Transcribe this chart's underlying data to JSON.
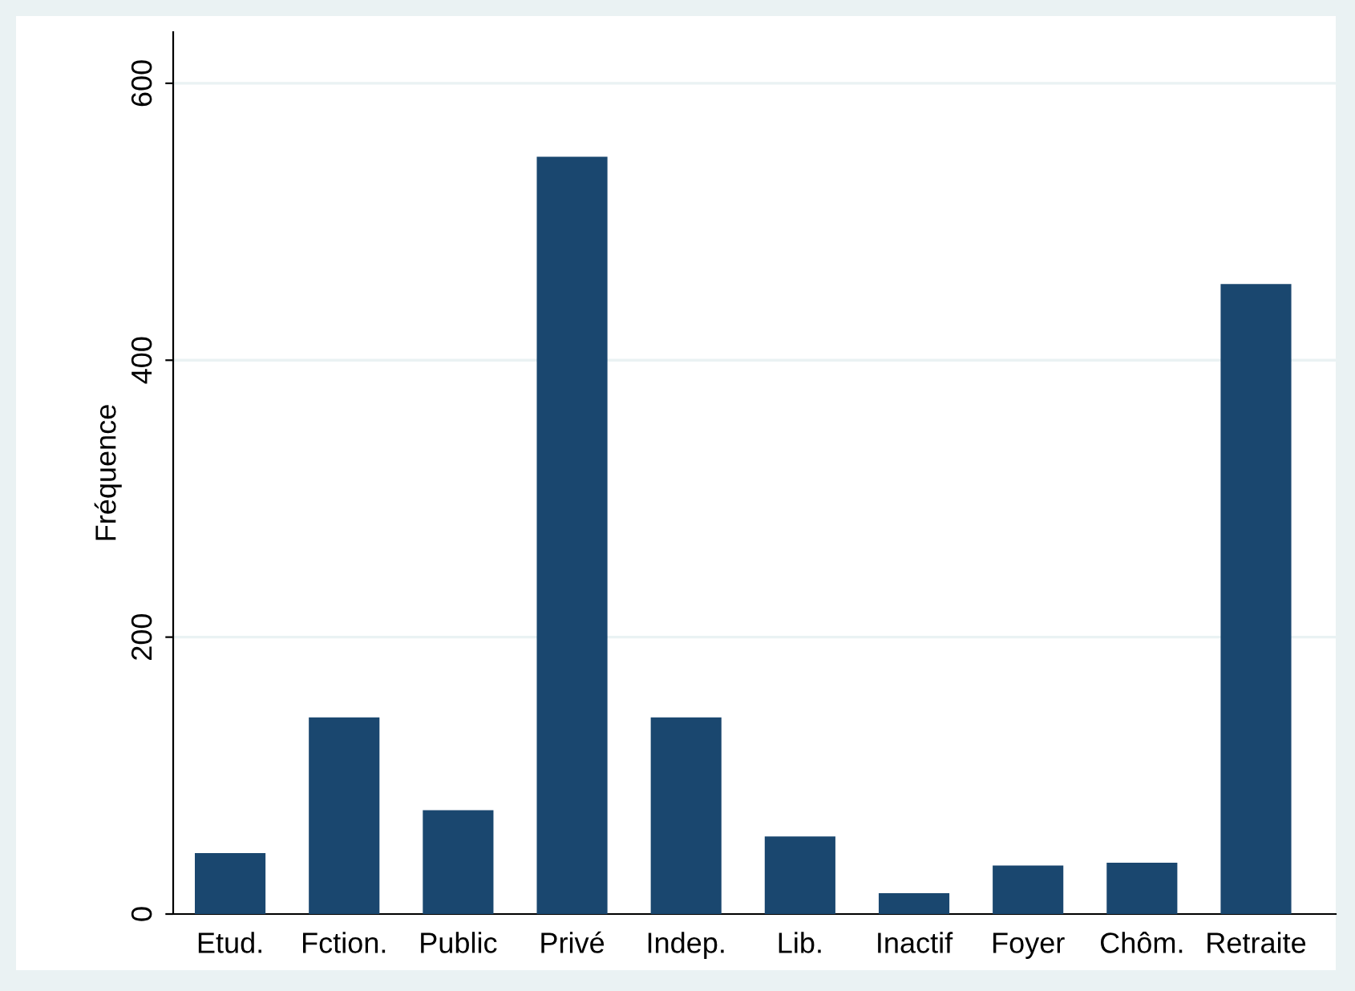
{
  "chart_data": {
    "type": "bar",
    "ylabel": "Fréquence",
    "categories": [
      "Etud.",
      "Fction.",
      "Public",
      "Privé",
      "Indep.",
      "Lib.",
      "Inactif",
      "Foyer",
      "Chôm.",
      "Retraite"
    ],
    "values": [
      44,
      142,
      75,
      547,
      142,
      56,
      15,
      35,
      37,
      455
    ],
    "color": "#1a476f",
    "ylim": [
      0,
      637
    ],
    "yticks": [
      0,
      200,
      400,
      600
    ],
    "grid": "y"
  }
}
